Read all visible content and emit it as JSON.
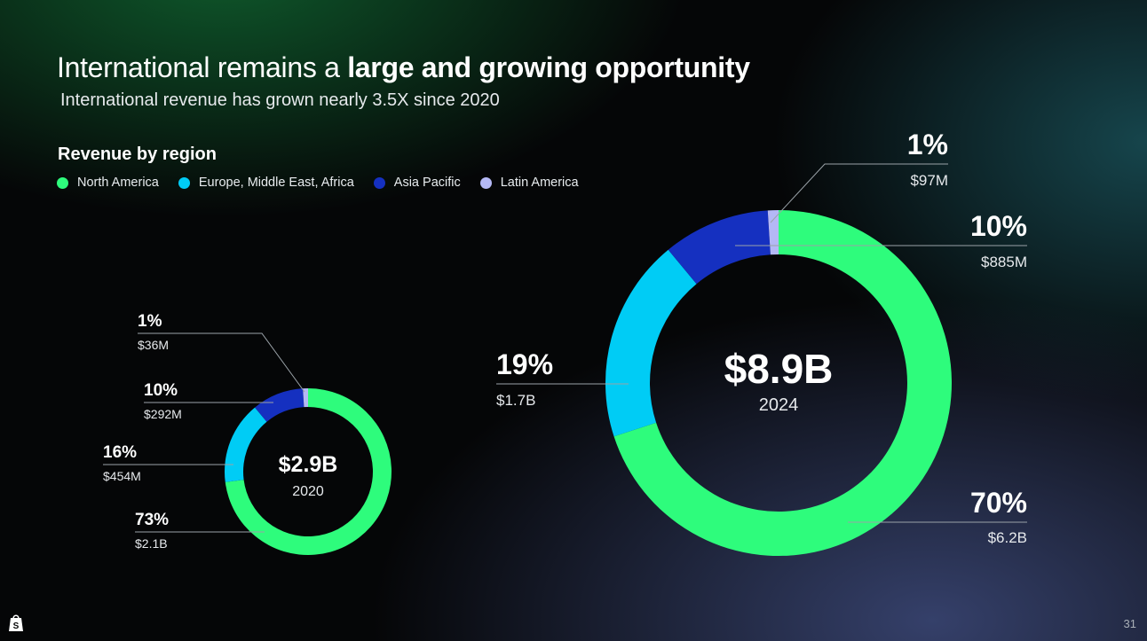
{
  "title": {
    "regular": "International remains a ",
    "bold": "large and growing opportunity"
  },
  "subtitle": "International revenue has grown nearly 3.5X since 2020",
  "section_title": "Revenue by region",
  "legend": [
    {
      "label": "North America",
      "color": "#2efc7c"
    },
    {
      "label": "Europe, Middle East, Africa",
      "color": "#00ccf5"
    },
    {
      "label": "Asia Pacific",
      "color": "#1530c0"
    },
    {
      "label": "Latin America",
      "color": "#b4b8f5"
    }
  ],
  "page_number": "31",
  "logo_icon": "shopify-bag-icon",
  "chart_data": [
    {
      "type": "pie",
      "variant": "donut",
      "center_total": "$2.9B",
      "center_label": "2020",
      "slices": [
        {
          "series": "North America",
          "percent": 73,
          "amount": "$2.1B"
        },
        {
          "series": "Europe, Middle East, Africa",
          "percent": 16,
          "amount": "$454M"
        },
        {
          "series": "Asia Pacific",
          "percent": 10,
          "amount": "$292M"
        },
        {
          "series": "Latin America",
          "percent": 1,
          "amount": "$36M"
        }
      ]
    },
    {
      "type": "pie",
      "variant": "donut",
      "center_total": "$8.9B",
      "center_label": "2024",
      "slices": [
        {
          "series": "North America",
          "percent": 70,
          "amount": "$6.2B"
        },
        {
          "series": "Europe, Middle East, Africa",
          "percent": 19,
          "amount": "$1.7B"
        },
        {
          "series": "Asia Pacific",
          "percent": 10,
          "amount": "$885M"
        },
        {
          "series": "Latin America",
          "percent": 1,
          "amount": "$97M"
        }
      ]
    }
  ]
}
